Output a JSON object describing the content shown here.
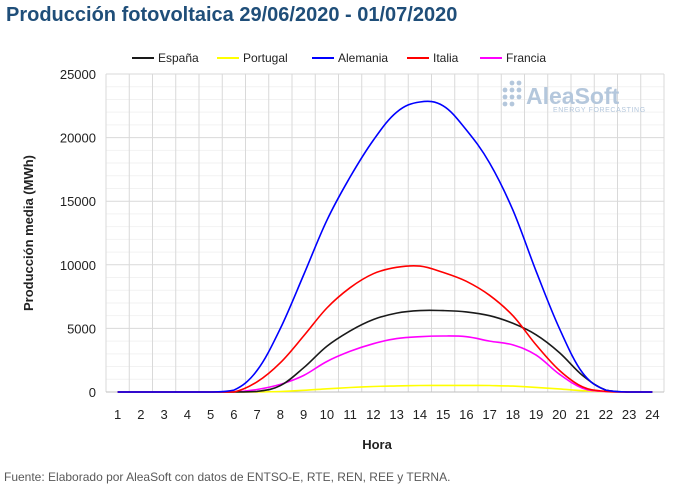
{
  "header": {
    "title": "Producción fotovoltaica 29/06/2020 - 01/07/2020"
  },
  "footer": {
    "source": "Fuente: Elaborado por AleaSoft con datos de ENTSO-E, RTE, REN, REE y TERNA."
  },
  "logo": {
    "name": "AleaSoft",
    "tagline": "ENERGY FORECASTING",
    "color": "#b4c7dc"
  },
  "chart_data": {
    "type": "line",
    "title": "Producción fotovoltaica 29/06/2020 - 01/07/2020",
    "xlabel": "Hora",
    "ylabel": "Producción media (MWh)",
    "x": [
      1,
      2,
      3,
      4,
      5,
      6,
      7,
      8,
      9,
      10,
      11,
      12,
      13,
      14,
      15,
      16,
      17,
      18,
      19,
      20,
      21,
      22,
      23,
      24
    ],
    "ylim": [
      0,
      25000
    ],
    "yticks": [
      0,
      5000,
      10000,
      15000,
      20000,
      25000
    ],
    "xlim": [
      1,
      24
    ],
    "grid": true,
    "legend_position": "top",
    "series": [
      {
        "name": "España",
        "color": "#1a1a1a",
        "values": [
          0,
          0,
          0,
          0,
          0,
          0,
          50,
          500,
          1900,
          3600,
          4800,
          5700,
          6200,
          6400,
          6400,
          6300,
          6000,
          5400,
          4500,
          3100,
          1300,
          150,
          0,
          0
        ]
      },
      {
        "name": "Portugal",
        "color": "#ffff00",
        "values": [
          0,
          0,
          0,
          0,
          0,
          0,
          0,
          40,
          130,
          250,
          350,
          430,
          480,
          510,
          520,
          520,
          510,
          460,
          360,
          240,
          100,
          20,
          0,
          0
        ]
      },
      {
        "name": "Alemania",
        "color": "#0000ff",
        "values": [
          0,
          0,
          0,
          0,
          0,
          150,
          1700,
          5000,
          9200,
          13500,
          16900,
          19800,
          22000,
          22800,
          22500,
          20600,
          18000,
          14300,
          9500,
          5000,
          1500,
          150,
          0,
          0
        ]
      },
      {
        "name": "Italia",
        "color": "#ff0000",
        "values": [
          0,
          0,
          0,
          0,
          0,
          0,
          800,
          2300,
          4400,
          6600,
          8200,
          9300,
          9800,
          9900,
          9400,
          8700,
          7600,
          6000,
          3700,
          1700,
          400,
          50,
          0,
          0
        ]
      },
      {
        "name": "Francia",
        "color": "#ff00ff",
        "values": [
          0,
          0,
          0,
          0,
          0,
          0,
          200,
          600,
          1300,
          2400,
          3200,
          3800,
          4200,
          4350,
          4400,
          4350,
          4000,
          3700,
          2900,
          1400,
          300,
          30,
          0,
          0
        ]
      }
    ]
  }
}
